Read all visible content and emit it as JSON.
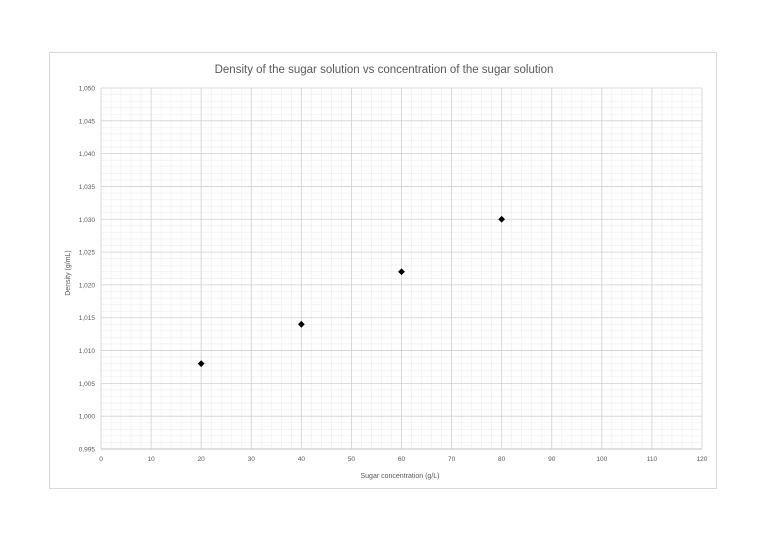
{
  "chart_data": {
    "type": "scatter",
    "title": "Density of the sugar solution vs concentration of the sugar solution",
    "xlabel": "Sugar concentration (g/L)",
    "ylabel": "Density (g/mL)",
    "xlim": [
      0,
      120
    ],
    "ylim": [
      0.995,
      1.05
    ],
    "x_ticks": [
      "0",
      "10",
      "20",
      "30",
      "40",
      "50",
      "60",
      "70",
      "80",
      "90",
      "100",
      "110",
      "120"
    ],
    "y_ticks": [
      "0,995",
      "1,000",
      "1,005",
      "1,010",
      "1,015",
      "1,020",
      "1,025",
      "1,030",
      "1,035",
      "1,040",
      "1,045",
      "1,050"
    ],
    "grid": true,
    "minor_grid": true,
    "marker": "diamond",
    "marker_color": "#000000",
    "series": [
      {
        "x": [
          20,
          40,
          60,
          80
        ],
        "y": [
          1.008,
          1.014,
          1.022,
          1.03
        ]
      }
    ]
  }
}
